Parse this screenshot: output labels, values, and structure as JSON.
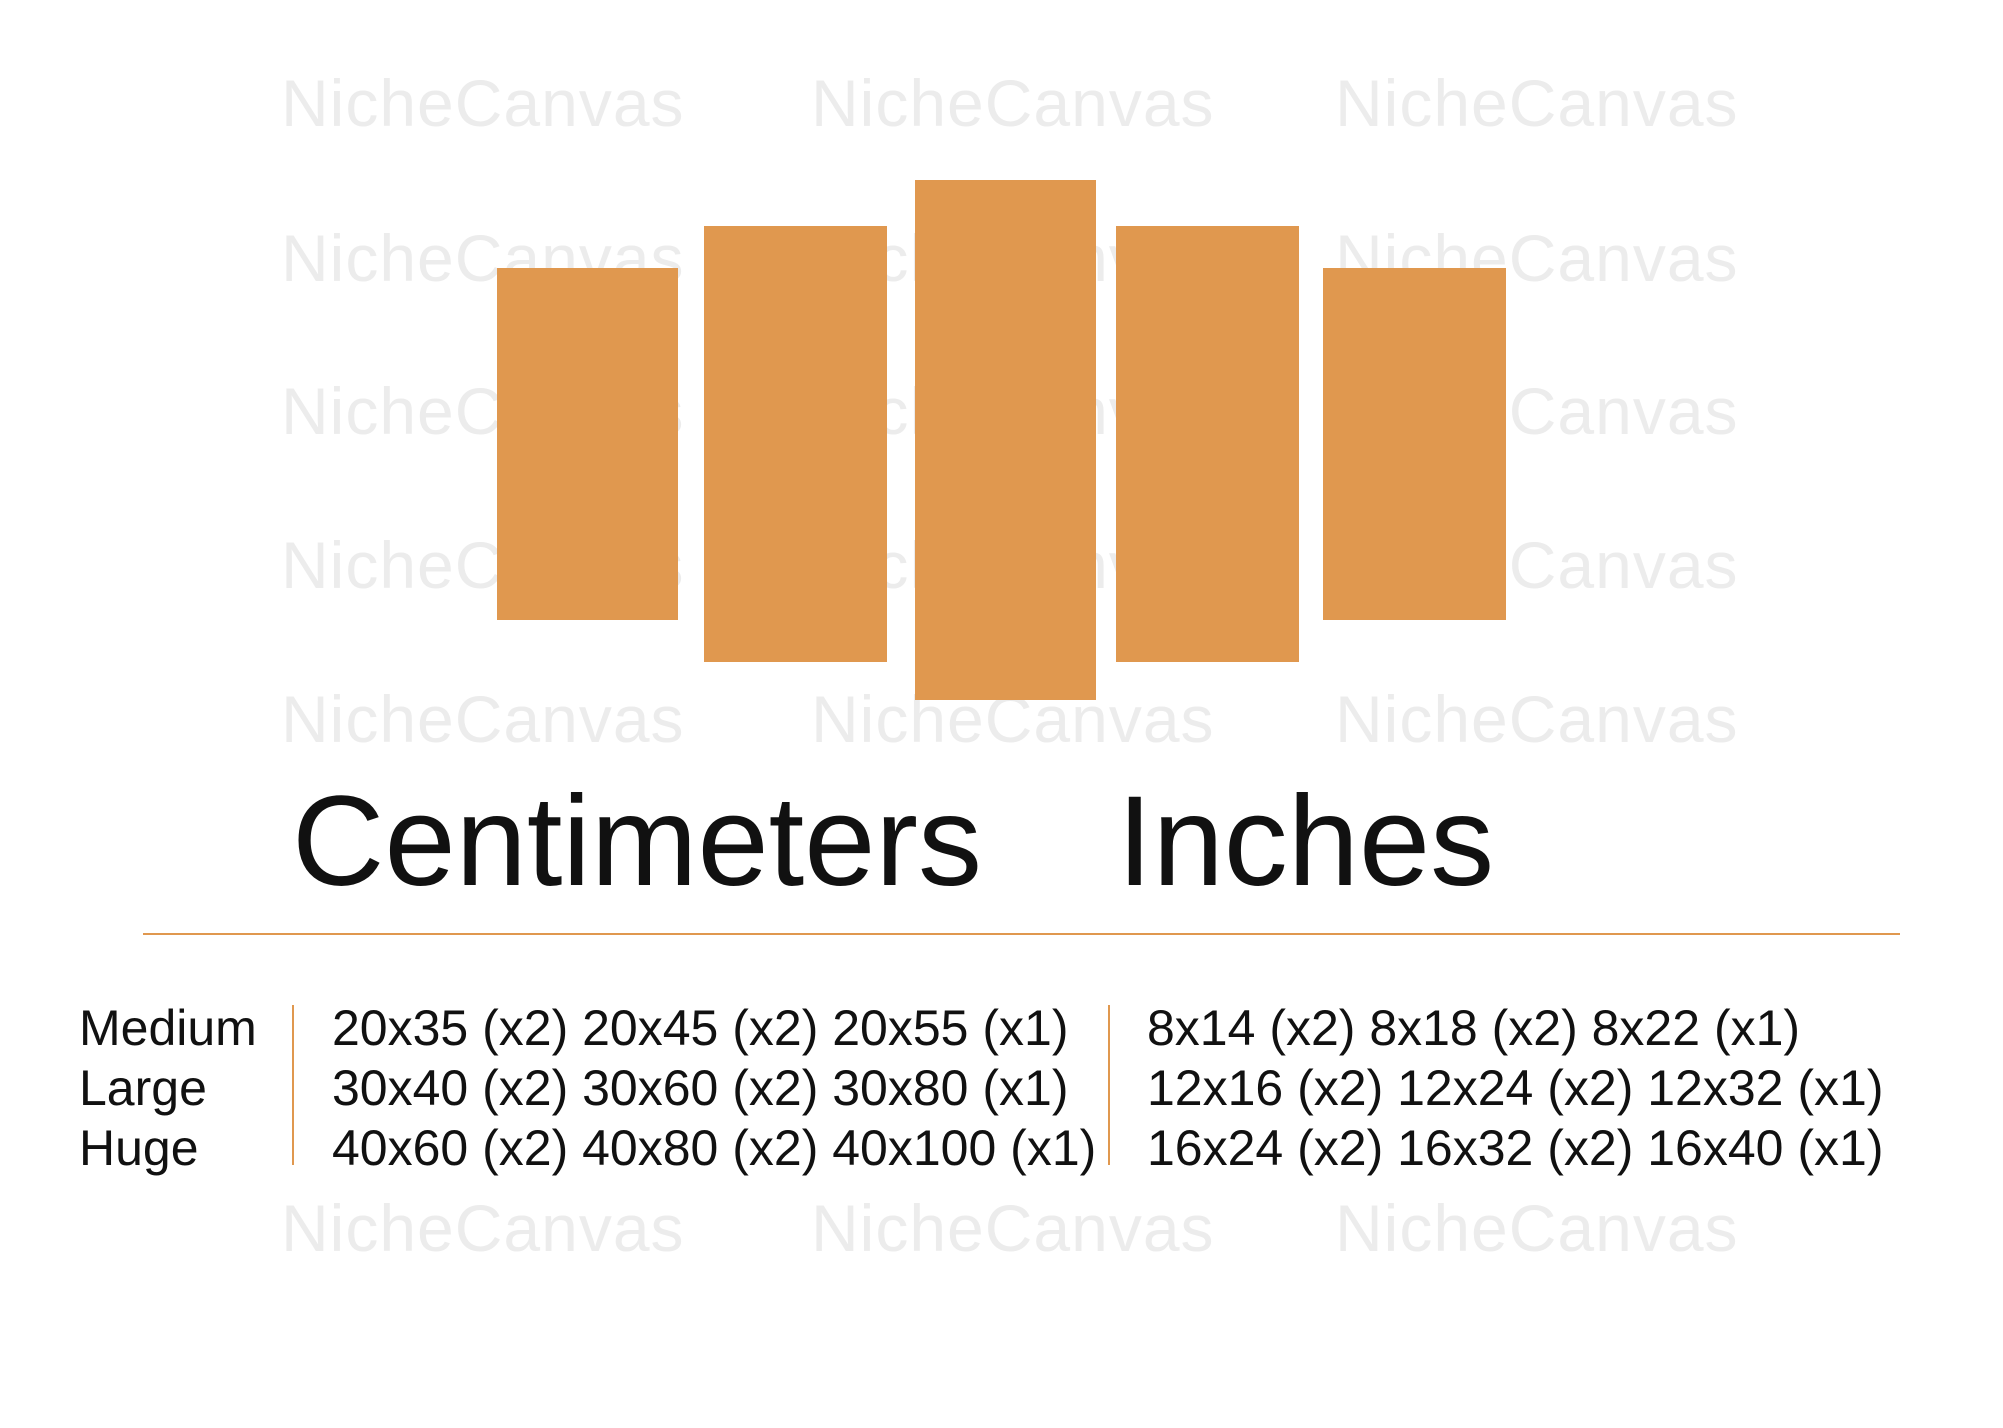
{
  "watermark": "NicheCanvas",
  "accent_color": "#E0984F",
  "panels": [
    {
      "size_label": "outer"
    },
    {
      "size_label": "middle"
    },
    {
      "size_label": "center"
    },
    {
      "size_label": "middle"
    },
    {
      "size_label": "outer"
    }
  ],
  "headings": {
    "cm": "Centimeters",
    "inches": "Inches"
  },
  "rows": [
    {
      "label": "Medium",
      "cm": "20x35 (x2) 20x45 (x2) 20x55 (x1)",
      "inches": "8x14 (x2) 8x18 (x2) 8x22 (x1)"
    },
    {
      "label": "Large",
      "cm": "30x40 (x2) 30x60 (x2) 30x80 (x1)",
      "inches": "12x16 (x2) 12x24 (x2) 12x32 (x1)"
    },
    {
      "label": "Huge",
      "cm": "40x60 (x2) 40x80 (x2) 40x100 (x1)",
      "inches": "16x24 (x2) 16x32 (x2) 16x40 (x1)"
    }
  ]
}
